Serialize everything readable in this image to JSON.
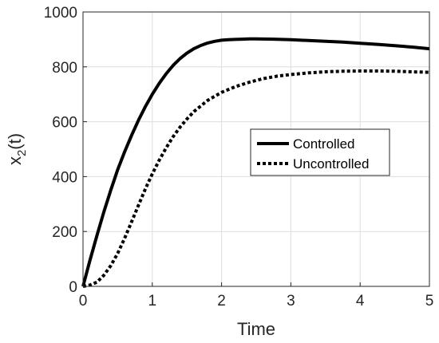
{
  "chart_data": {
    "type": "line",
    "title": "",
    "xlabel": "Time",
    "ylabel_main": "x",
    "ylabel_sub": "2",
    "ylabel_tail": "(t)",
    "xlim": [
      0,
      5
    ],
    "ylim": [
      0,
      1000
    ],
    "xticks": [
      0,
      1,
      2,
      3,
      4,
      5
    ],
    "yticks": [
      0,
      200,
      400,
      600,
      800,
      1000
    ],
    "grid": true,
    "legend_position": "center-right",
    "series": [
      {
        "name": "Controlled",
        "style": "solid",
        "color": "#000000",
        "x": [
          0,
          0.1,
          0.2,
          0.3,
          0.4,
          0.5,
          0.6,
          0.7,
          0.8,
          0.9,
          1.0,
          1.1,
          1.2,
          1.3,
          1.4,
          1.5,
          1.6,
          1.7,
          1.8,
          1.9,
          2.0,
          2.1,
          2.2,
          2.3,
          2.4,
          2.5,
          2.75,
          3.0,
          3.25,
          3.5,
          3.75,
          4.0,
          4.25,
          4.5,
          4.75,
          5.0
        ],
        "y": [
          0,
          95,
          185,
          270,
          350,
          425,
          490,
          550,
          605,
          655,
          700,
          740,
          775,
          805,
          830,
          850,
          866,
          878,
          887,
          893,
          897,
          899,
          900,
          901,
          902,
          902,
          901,
          899,
          896,
          893,
          890,
          886,
          882,
          877,
          872,
          866
        ]
      },
      {
        "name": "Uncontrolled",
        "style": "dotted",
        "color": "#000000",
        "x": [
          0,
          0.1,
          0.2,
          0.3,
          0.4,
          0.5,
          0.6,
          0.7,
          0.8,
          0.9,
          1.0,
          1.1,
          1.2,
          1.3,
          1.4,
          1.5,
          1.6,
          1.8,
          2.0,
          2.2,
          2.4,
          2.6,
          2.8,
          3.0,
          3.25,
          3.5,
          3.75,
          4.0,
          4.25,
          4.5,
          4.75,
          5.0
        ],
        "y": [
          0,
          5,
          15,
          40,
          75,
          120,
          175,
          235,
          295,
          355,
          410,
          460,
          505,
          545,
          580,
          610,
          637,
          678,
          707,
          728,
          744,
          757,
          766,
          772,
          778,
          782,
          784,
          785,
          785,
          784,
          782,
          780
        ]
      }
    ]
  }
}
